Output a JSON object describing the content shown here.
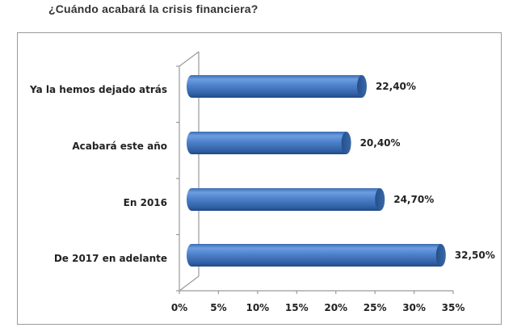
{
  "title": "¿Cuándo acabará la crisis financiera?",
  "colors": {
    "bar_top": "#6c9ee0",
    "bar_mid": "#4a7cc7",
    "bar_bottom": "#1f4e8c",
    "bar_cap": "#2c5a99",
    "axis": "#9a9a9a",
    "frame": "#9a9a9a",
    "text": "#222222"
  },
  "chart_data": {
    "type": "bar",
    "orientation": "horizontal",
    "style": "3d-cylinder",
    "title": "¿Cuándo acabará la crisis financiera?",
    "xlabel": "",
    "ylabel": "",
    "categories": [
      "Ya la hemos dejado atrás",
      "Acabará este año",
      "En 2016",
      "De 2017 en adelante"
    ],
    "values": [
      22.4,
      20.4,
      24.7,
      32.5
    ],
    "value_labels": [
      "22,40%",
      "20,40%",
      "24,70%",
      "32,50%"
    ],
    "xlim": [
      0,
      35
    ],
    "x_ticks": [
      "0%",
      "5%",
      "10%",
      "15%",
      "20%",
      "25%",
      "30%",
      "35%"
    ],
    "grid": false,
    "legend": null
  }
}
